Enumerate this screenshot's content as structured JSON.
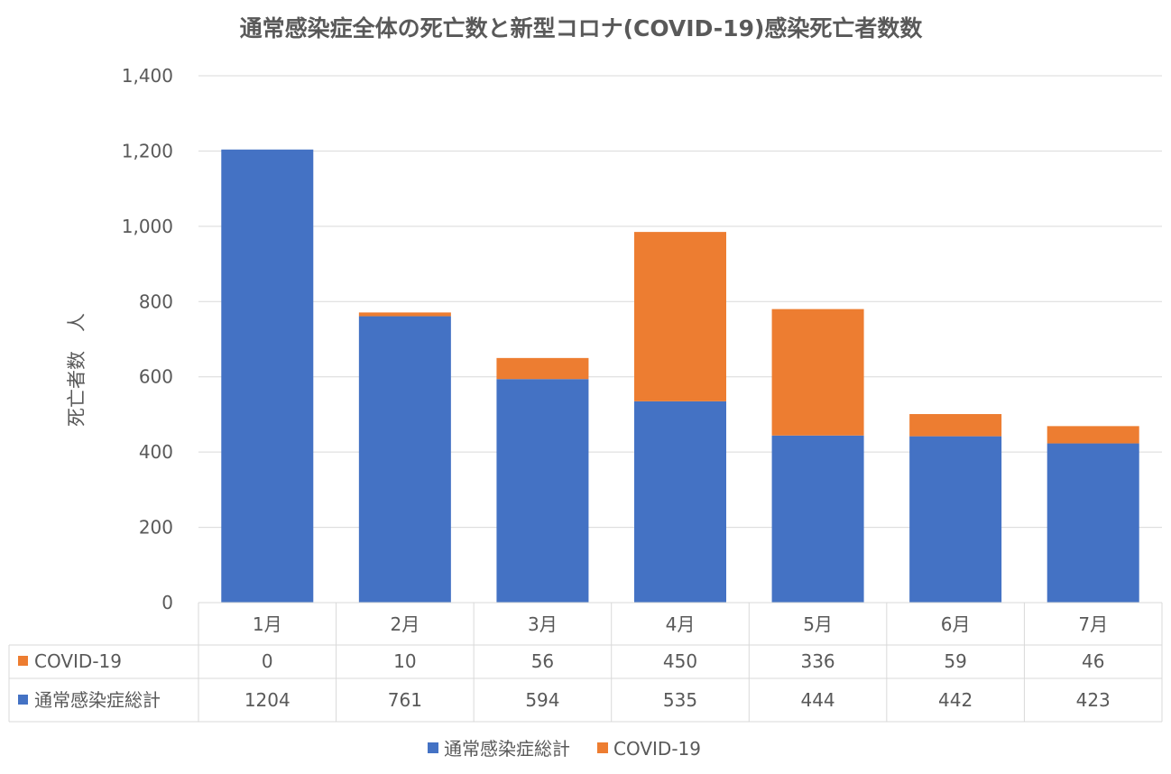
{
  "chart_data": {
    "type": "bar",
    "stacked": true,
    "title": "通常感染症全体の死亡数と新型コロナ(COVID-19)感染死亡者数数",
    "ylabel": "死亡者数　人",
    "xlabel": "",
    "ylim": [
      0,
      1400
    ],
    "yticks": [
      0,
      200,
      400,
      600,
      800,
      1000,
      1200,
      1400
    ],
    "ytick_labels": [
      "0",
      "200",
      "400",
      "600",
      "800",
      "1,000",
      "1,200",
      "1,400"
    ],
    "grid": true,
    "legend_position": "bottom",
    "categories": [
      "1月",
      "2月",
      "3月",
      "4月",
      "5月",
      "6月",
      "7月"
    ],
    "series": [
      {
        "name": "通常感染症総計",
        "color": "#4472C4",
        "values": [
          1204,
          761,
          594,
          535,
          444,
          442,
          423
        ]
      },
      {
        "name": "COVID-19",
        "color": "#ED7D31",
        "values": [
          0,
          10,
          56,
          450,
          336,
          59,
          46
        ]
      }
    ],
    "data_table": true
  }
}
